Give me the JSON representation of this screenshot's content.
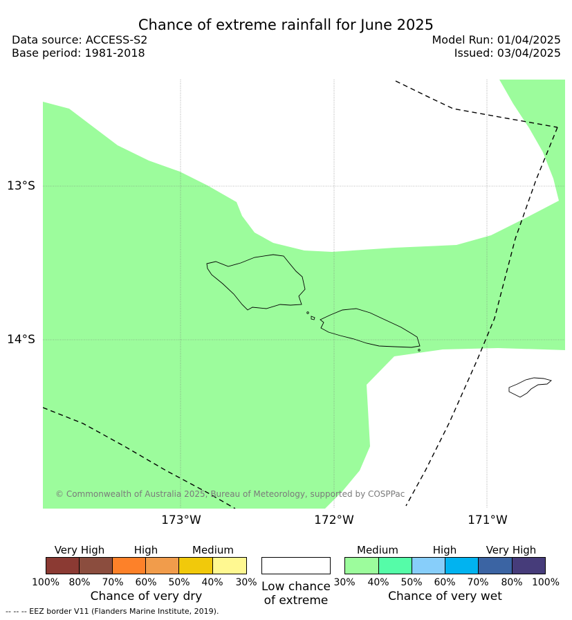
{
  "map": {
    "title": "Chance of extreme rainfall for June 2025",
    "data_source": "Data source: ACCESS-S2",
    "base_period": "Base period: 1981-2018",
    "model_run": "Model Run: 01/04/2025",
    "issued": "Issued: 03/04/2025",
    "lat_labels": [
      "13°S",
      "14°S"
    ],
    "lon_labels": [
      "173°W",
      "172°W",
      "171°W"
    ],
    "copyright": "© Commonwealth of Australia 2025, Bureau of Meteorology, supported by COSPPac",
    "footnote": "-- -- -- EEZ border V11 (Flanders Marine Institute, 2019).",
    "fill_color": "#9cfc9c",
    "region_category": "Medium chance of very wet (30%–40%)"
  },
  "legend": {
    "dry": {
      "headers": [
        "Very High",
        "High",
        "Medium"
      ],
      "ticks": [
        "100%",
        "80%",
        "70%",
        "60%",
        "50%",
        "40%",
        "30%"
      ],
      "caption": "Chance of very dry",
      "colors": [
        "#8b3a33",
        "#8b4d3e",
        "#fd8129",
        "#f19c4b",
        "#f1c90b",
        "#fff891"
      ]
    },
    "low": {
      "caption_line1": "Low chance",
      "caption_line2": "of extreme",
      "color": "#ffffff"
    },
    "wet": {
      "headers": [
        "Medium",
        "High",
        "Very High"
      ],
      "ticks": [
        "30%",
        "40%",
        "50%",
        "60%",
        "70%",
        "80%",
        "100%"
      ],
      "caption": "Chance of very wet",
      "colors": [
        "#9cfc9c",
        "#55fca8",
        "#87cefa",
        "#01b3f0",
        "#3b64a3",
        "#463c7a"
      ]
    }
  }
}
